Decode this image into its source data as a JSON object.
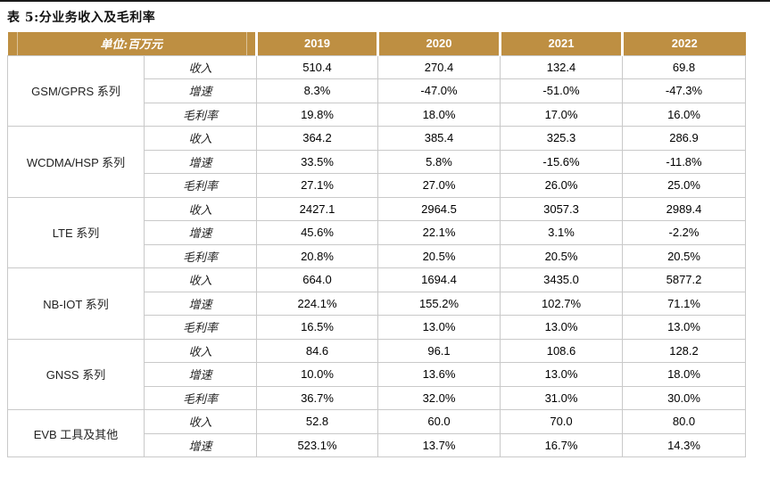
{
  "title": "表 5:分业务收入及毛利率",
  "colors": {
    "gold": "#BE8F42",
    "border": "#c9c9c9",
    "rule": "#1a1a1a",
    "title": "#111111",
    "head-text": "#ffffff",
    "body-text": "#000000"
  },
  "table": {
    "unit_label": "单位:百万元",
    "years": [
      "2019",
      "2020",
      "2021",
      "2022"
    ],
    "groups": [
      {
        "name": "GSM/GPRS 系列",
        "rows": [
          {
            "metric": "收入",
            "values": [
              "510.4",
              "270.4",
              "132.4",
              "69.8"
            ]
          },
          {
            "metric": "增速",
            "values": [
              "8.3%",
              "-47.0%",
              "-51.0%",
              "-47.3%"
            ]
          },
          {
            "metric": "毛利率",
            "values": [
              "19.8%",
              "18.0%",
              "17.0%",
              "16.0%"
            ]
          }
        ]
      },
      {
        "name": "WCDMA/HSP 系列",
        "rows": [
          {
            "metric": "收入",
            "values": [
              "364.2",
              "385.4",
              "325.3",
              "286.9"
            ]
          },
          {
            "metric": "增速",
            "values": [
              "33.5%",
              "5.8%",
              "-15.6%",
              "-11.8%"
            ]
          },
          {
            "metric": "毛利率",
            "values": [
              "27.1%",
              "27.0%",
              "26.0%",
              "25.0%"
            ]
          }
        ]
      },
      {
        "name": "LTE 系列",
        "rows": [
          {
            "metric": "收入",
            "values": [
              "2427.1",
              "2964.5",
              "3057.3",
              "2989.4"
            ]
          },
          {
            "metric": "增速",
            "values": [
              "45.6%",
              "22.1%",
              "3.1%",
              "-2.2%"
            ]
          },
          {
            "metric": "毛利率",
            "values": [
              "20.8%",
              "20.5%",
              "20.5%",
              "20.5%"
            ]
          }
        ]
      },
      {
        "name": "NB-IOT 系列",
        "rows": [
          {
            "metric": "收入",
            "values": [
              "664.0",
              "1694.4",
              "3435.0",
              "5877.2"
            ]
          },
          {
            "metric": "增速",
            "values": [
              "224.1%",
              "155.2%",
              "102.7%",
              "71.1%"
            ]
          },
          {
            "metric": "毛利率",
            "values": [
              "16.5%",
              "13.0%",
              "13.0%",
              "13.0%"
            ]
          }
        ]
      },
      {
        "name": "GNSS 系列",
        "rows": [
          {
            "metric": "收入",
            "values": [
              "84.6",
              "96.1",
              "108.6",
              "128.2"
            ]
          },
          {
            "metric": "增速",
            "values": [
              "10.0%",
              "13.6%",
              "13.0%",
              "18.0%"
            ]
          },
          {
            "metric": "毛利率",
            "values": [
              "36.7%",
              "32.0%",
              "31.0%",
              "30.0%"
            ]
          }
        ]
      },
      {
        "name": "EVB 工具及其他",
        "rows": [
          {
            "metric": "收入",
            "values": [
              "52.8",
              "60.0",
              "70.0",
              "80.0"
            ]
          },
          {
            "metric": "增速",
            "values": [
              "523.1%",
              "13.7%",
              "16.7%",
              "14.3%"
            ]
          }
        ]
      }
    ]
  }
}
